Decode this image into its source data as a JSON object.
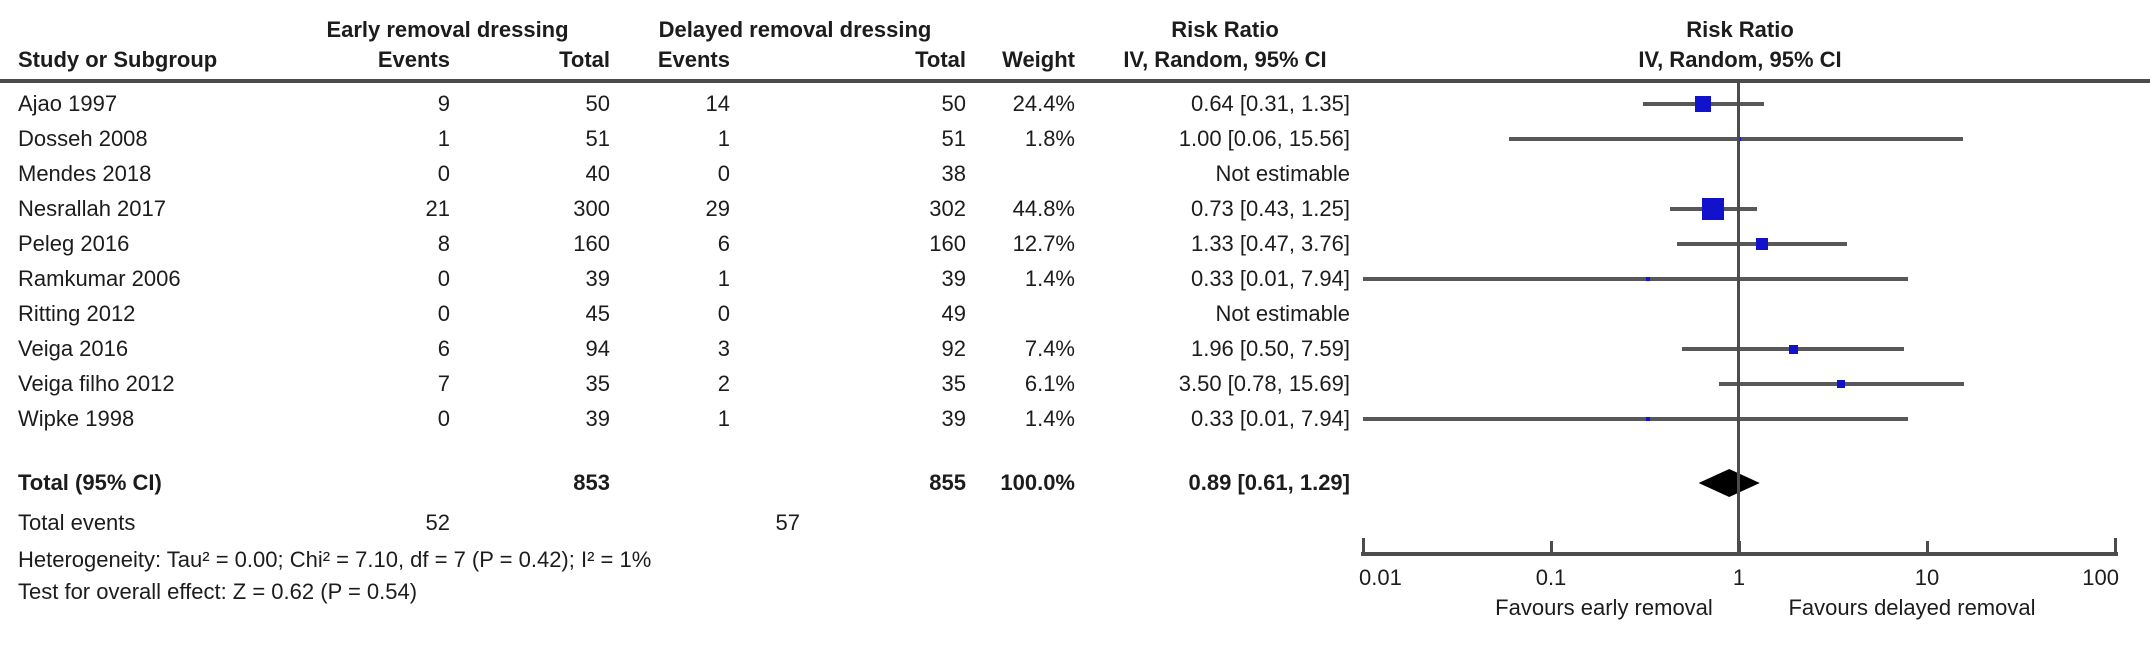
{
  "header": {
    "group_early": "Early removal dressing",
    "group_delayed": "Delayed removal dressing",
    "study_col": "Study or Subgroup",
    "events_col": "Events",
    "total_col": "Total",
    "weight_col": "Weight",
    "risk_ratio_col": "Risk Ratio",
    "method_col": "IV, Random, 95% CI",
    "plot_title": "Risk Ratio",
    "plot_subtitle": "IV, Random, 95% CI"
  },
  "chart_data": {
    "type": "scatter",
    "subtype": "forest-plot",
    "effect_measure": "Risk Ratio",
    "model": "IV, Random, 95% CI",
    "marker_color": "#1212cc",
    "line_color": "#58585a",
    "x_axis": {
      "scale": "log",
      "ticks": [
        "0.01",
        "0.1",
        "1",
        "10",
        "100"
      ],
      "tick_values": [
        0.01,
        0.1,
        1,
        10,
        100
      ],
      "range": [
        0.01,
        100
      ],
      "label_left": "Favours early removal",
      "label_right": "Favours delayed removal"
    },
    "studies": [
      {
        "name": "Ajao 1997",
        "e_events": "9",
        "e_total": "50",
        "d_events": "14",
        "d_total": "50",
        "weight": "24.4%",
        "weight_pct": 24.4,
        "rr_text": "0.64 [0.31, 1.35]",
        "rr": 0.64,
        "ci_low": 0.31,
        "ci_high": 1.35,
        "estimable": true
      },
      {
        "name": "Dosseh 2008",
        "e_events": "1",
        "e_total": "51",
        "d_events": "1",
        "d_total": "51",
        "weight": "1.8%",
        "weight_pct": 1.8,
        "rr_text": "1.00 [0.06, 15.56]",
        "rr": 1.0,
        "ci_low": 0.06,
        "ci_high": 15.56,
        "estimable": true
      },
      {
        "name": "Mendes 2018",
        "e_events": "0",
        "e_total": "40",
        "d_events": "0",
        "d_total": "38",
        "weight": "",
        "weight_pct": 0,
        "rr_text": "Not estimable",
        "rr": null,
        "ci_low": null,
        "ci_high": null,
        "estimable": false
      },
      {
        "name": "Nesrallah 2017",
        "e_events": "21",
        "e_total": "300",
        "d_events": "29",
        "d_total": "302",
        "weight": "44.8%",
        "weight_pct": 44.8,
        "rr_text": "0.73 [0.43, 1.25]",
        "rr": 0.73,
        "ci_low": 0.43,
        "ci_high": 1.25,
        "estimable": true
      },
      {
        "name": "Peleg 2016",
        "e_events": "8",
        "e_total": "160",
        "d_events": "6",
        "d_total": "160",
        "weight": "12.7%",
        "weight_pct": 12.7,
        "rr_text": "1.33 [0.47, 3.76]",
        "rr": 1.33,
        "ci_low": 0.47,
        "ci_high": 3.76,
        "estimable": true
      },
      {
        "name": "Ramkumar 2006",
        "e_events": "0",
        "e_total": "39",
        "d_events": "1",
        "d_total": "39",
        "weight": "1.4%",
        "weight_pct": 1.4,
        "rr_text": "0.33 [0.01, 7.94]",
        "rr": 0.33,
        "ci_low": 0.01,
        "ci_high": 7.94,
        "estimable": true
      },
      {
        "name": "Ritting 2012",
        "e_events": "0",
        "e_total": "45",
        "d_events": "0",
        "d_total": "49",
        "weight": "",
        "weight_pct": 0,
        "rr_text": "Not estimable",
        "rr": null,
        "ci_low": null,
        "ci_high": null,
        "estimable": false
      },
      {
        "name": "Veiga 2016",
        "e_events": "6",
        "e_total": "94",
        "d_events": "3",
        "d_total": "92",
        "weight": "7.4%",
        "weight_pct": 7.4,
        "rr_text": "1.96 [0.50, 7.59]",
        "rr": 1.96,
        "ci_low": 0.5,
        "ci_high": 7.59,
        "estimable": true
      },
      {
        "name": "Veiga filho 2012",
        "e_events": "7",
        "e_total": "35",
        "d_events": "2",
        "d_total": "35",
        "weight": "6.1%",
        "weight_pct": 6.1,
        "rr_text": "3.50 [0.78, 15.69]",
        "rr": 3.5,
        "ci_low": 0.78,
        "ci_high": 15.69,
        "estimable": true
      },
      {
        "name": "Wipke 1998",
        "e_events": "0",
        "e_total": "39",
        "d_events": "1",
        "d_total": "39",
        "weight": "1.4%",
        "weight_pct": 1.4,
        "rr_text": "0.33 [0.01, 7.94]",
        "rr": 0.33,
        "ci_low": 0.01,
        "ci_high": 7.94,
        "estimable": true
      }
    ],
    "total": {
      "label": "Total (95% CI)",
      "e_total": "853",
      "d_total": "855",
      "weight": "100.0%",
      "rr_text": "0.89 [0.61, 1.29]",
      "rr": 0.89,
      "ci_low": 0.61,
      "ci_high": 1.29
    },
    "total_events": {
      "label": "Total events",
      "early": "52",
      "delayed": "57"
    },
    "heterogeneity": "Heterogeneity: Tau² = 0.00; Chi² = 7.10, df = 7 (P = 0.42); I² = 1%",
    "overall_effect": "Test for overall effect: Z = 0.62 (P = 0.54)"
  }
}
